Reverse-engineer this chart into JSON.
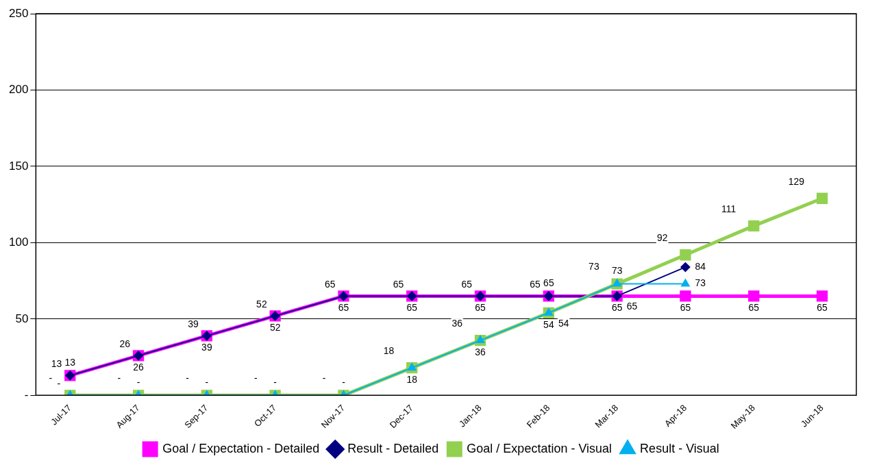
{
  "chart_data": {
    "type": "line",
    "categories": [
      "Jul-17",
      "Aug-17",
      "Sep-17",
      "Oct-17",
      "Nov-17",
      "Dec-17",
      "Jan-18",
      "Feb-18",
      "Mar-18",
      "Apr-18",
      "May-18",
      "Jun-18"
    ],
    "series": [
      {
        "name": "Goal / Expectation - Detailed",
        "color": "#ff00ff",
        "marker": "square",
        "values": [
          13,
          26,
          39,
          52,
          65,
          65,
          65,
          65,
          65,
          65,
          65,
          65
        ],
        "value_labels": [
          "13",
          "26",
          "39",
          "52",
          "65",
          "65",
          "65",
          "65",
          "65",
          "65",
          "65",
          "65"
        ]
      },
      {
        "name": "Result - Detailed",
        "color": "#000080",
        "marker": "diamond",
        "values": [
          13,
          26,
          39,
          52,
          65,
          65,
          65,
          65,
          65,
          84,
          null,
          null
        ],
        "value_labels": [
          "13",
          "26",
          "39",
          "52",
          "65",
          "65",
          "65",
          "65",
          "65",
          "84",
          null,
          null
        ]
      },
      {
        "name": "Goal / Expectation - Visual",
        "color": "#92d050",
        "marker": "square",
        "values": [
          0,
          0,
          0,
          0,
          0,
          18,
          36,
          54,
          73,
          92,
          111,
          129
        ],
        "value_labels": [
          "-",
          "-",
          "-",
          "-",
          "-",
          "18",
          "36",
          "54",
          "73",
          "92",
          "111",
          "129"
        ]
      },
      {
        "name": "Result - Visual",
        "color": "#00b0f0",
        "marker": "triangle",
        "values": [
          0,
          0,
          0,
          0,
          0,
          18,
          36,
          54,
          73,
          73,
          null,
          null
        ],
        "value_labels": [
          "-",
          "-",
          "-",
          "-",
          "-",
          "18",
          "36",
          "54",
          "73",
          "73",
          null,
          null
        ]
      }
    ],
    "ylim": [
      0,
      250
    ],
    "yticks": [
      {
        "value": 0,
        "label": "-"
      },
      50,
      100,
      150,
      200,
      250
    ],
    "grid": "y",
    "legend": "bottom",
    "line_style": "solid"
  }
}
